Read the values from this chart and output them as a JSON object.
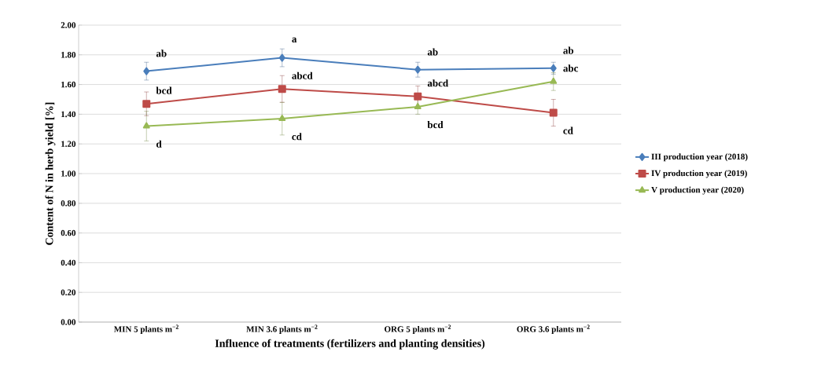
{
  "chart_data": {
    "type": "line",
    "xlabel": "Influence of treatments (fertilizers and planting densities)",
    "ylabel": "Content of N in herb yield [%]",
    "categories": [
      "MIN 5 plants m$^{−2}$",
      "MIN 3.6 plants m$^{−2}$",
      "ORG 5 plants m$^{−2}$",
      "ORG 3.6 plants m$^{−2}$"
    ],
    "series": [
      {
        "name": "III production year (2018)",
        "color": "#4a7ebb",
        "marker": "diamond",
        "values": [
          1.69,
          1.78,
          1.7,
          1.71
        ],
        "errors": [
          0.06,
          0.06,
          0.05,
          0.04
        ]
      },
      {
        "name": "IV production year (2019)",
        "color": "#be4b48",
        "marker": "square",
        "values": [
          1.47,
          1.57,
          1.52,
          1.41
        ],
        "errors": [
          0.08,
          0.09,
          0.07,
          0.09
        ]
      },
      {
        "name": "V production year (2020)",
        "color": "#98b954",
        "marker": "triangle",
        "values": [
          1.32,
          1.37,
          1.45,
          1.62
        ],
        "errors": [
          0.1,
          0.11,
          0.05,
          0.06
        ]
      }
    ],
    "ylim": [
      0,
      2
    ],
    "yticks": [
      {
        "value": 0,
        "label": "0.00"
      },
      {
        "value": 0.2,
        "label": "0.20"
      },
      {
        "value": 0.4,
        "label": "0.40"
      },
      {
        "value": 0.6,
        "label": "0.60"
      },
      {
        "value": 0.8,
        "label": "0.80"
      },
      {
        "value": 1.0,
        "label": "1.00"
      },
      {
        "value": 1.2,
        "label": "1.20"
      },
      {
        "value": 1.4,
        "label": "1.40"
      },
      {
        "value": 1.6,
        "label": "1.60"
      },
      {
        "value": 1.8,
        "label": "1.80"
      },
      {
        "value": 2.0,
        "label": "2.00"
      }
    ],
    "grid": "y",
    "legend": "right",
    "line_style": "solid",
    "annotations": [
      "ab",
      "bcd",
      "d",
      "a",
      "abcd",
      "cd",
      "ab",
      "abcd",
      "bcd",
      "ab",
      "abc",
      "cd"
    ]
  }
}
